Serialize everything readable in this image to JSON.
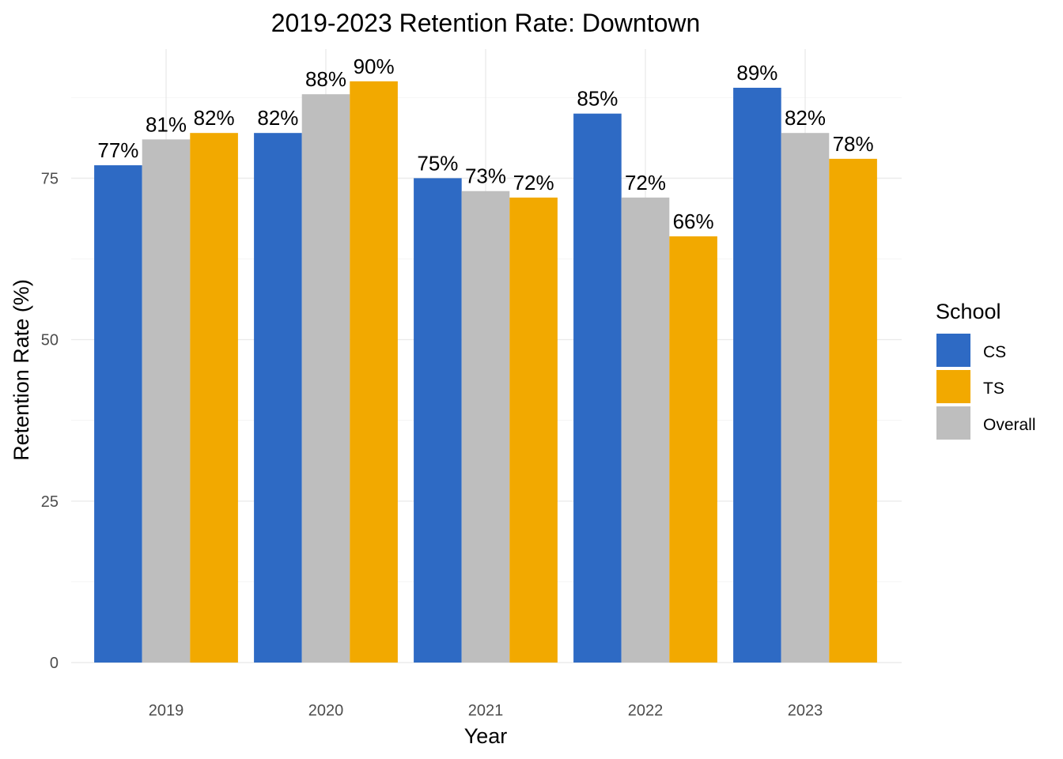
{
  "chart_data": {
    "type": "bar",
    "title": "2019-2023 Retention Rate: Downtown",
    "xlabel": "Year",
    "ylabel": "Retention Rate (%)",
    "categories": [
      "2019",
      "2020",
      "2021",
      "2022",
      "2023"
    ],
    "series": [
      {
        "name": "CS",
        "color": "#2E6AC4",
        "values": [
          77,
          82,
          75,
          85,
          89
        ]
      },
      {
        "name": "Overall",
        "color": "#BEBEBE",
        "values": [
          81,
          88,
          73,
          72,
          82
        ]
      },
      {
        "name": "TS",
        "color": "#F2A900",
        "values": [
          82,
          90,
          72,
          66,
          78
        ]
      }
    ],
    "value_suffix": "%",
    "ylim": [
      0,
      95
    ],
    "yticks": [
      0,
      25,
      50,
      75
    ],
    "grid": true,
    "legend": {
      "title": "School",
      "placement": "right",
      "order": [
        "CS",
        "TS",
        "Overall"
      ]
    }
  }
}
